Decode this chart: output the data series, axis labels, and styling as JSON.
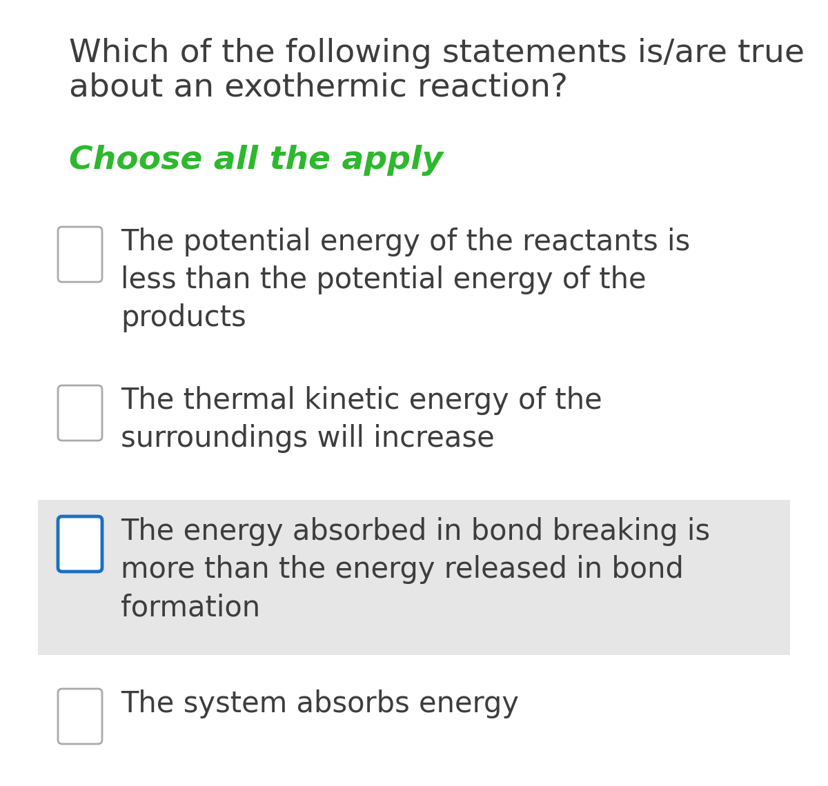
{
  "bg_color": "#ffffff",
  "title_line1": "Which of the following statements is/are true",
  "title_line2": "about an exothermic reaction?",
  "subtitle": "Choose all the apply",
  "subtitle_color": "#2db82d",
  "options": [
    {
      "lines": [
        "The potential energy of the reactants is",
        "less than the potential energy of the",
        "products"
      ],
      "highlighted": false,
      "highlight_color": null,
      "checkbox_border_color": "#aaaaaa",
      "checkbox_fill": "#ffffff"
    },
    {
      "lines": [
        "The thermal kinetic energy of the",
        "surroundings will increase"
      ],
      "highlighted": false,
      "highlight_color": null,
      "checkbox_border_color": "#aaaaaa",
      "checkbox_fill": "#ffffff"
    },
    {
      "lines": [
        "The energy absorbed in bond breaking is",
        "more than the energy released in bond",
        "formation"
      ],
      "highlighted": true,
      "highlight_color": "#e6e6e6",
      "checkbox_border_color": "#1a6fc4",
      "checkbox_fill": "#ffffff"
    },
    {
      "lines": [
        "The system absorbs energy"
      ],
      "highlighted": false,
      "highlight_color": null,
      "checkbox_border_color": "#aaaaaa",
      "checkbox_fill": "#ffffff"
    }
  ],
  "title_fontsize": 34,
  "subtitle_fontsize": 34,
  "option_fontsize": 30,
  "text_color": "#3d3d3d",
  "fig_width": 12.0,
  "fig_height": 11.4,
  "dpi": 100
}
